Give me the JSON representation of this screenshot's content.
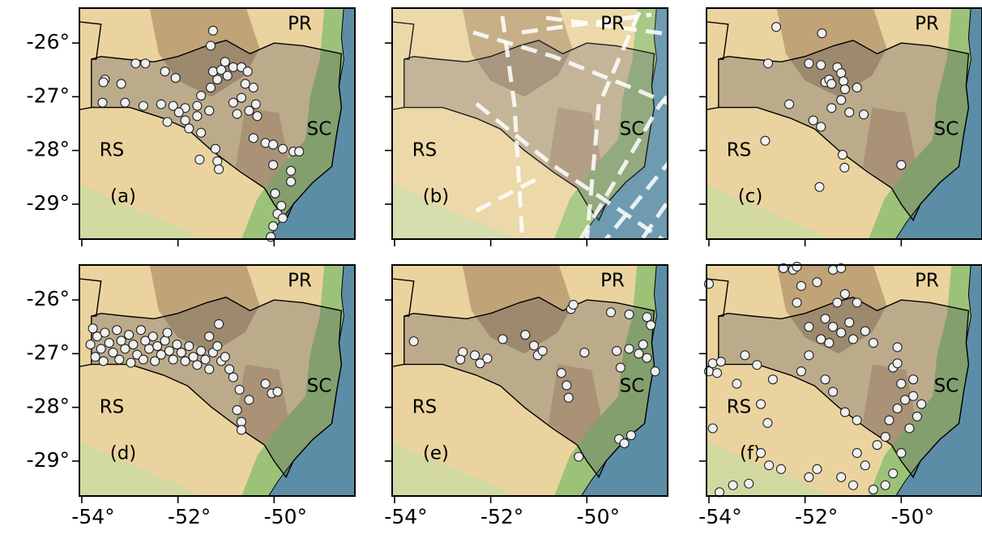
{
  "axes": {
    "xlim": [
      -54.05,
      -48.32
    ],
    "ylim": [
      -29.65,
      -25.35
    ],
    "xticks": [
      {
        "value": -54,
        "label": "-54°"
      },
      {
        "value": -52,
        "label": "-52°"
      },
      {
        "value": -50,
        "label": "-50°"
      }
    ],
    "yticks": [
      {
        "value": -26,
        "label": "-26°"
      },
      {
        "value": -27,
        "label": "-27°"
      },
      {
        "value": -28,
        "label": "-28°"
      },
      {
        "value": -29,
        "label": "-29°"
      }
    ]
  },
  "panels": [
    {
      "label": "(a)",
      "states": [
        "PR",
        "SC",
        "RS"
      ],
      "points": [
        [
          -53.52,
          -26.68
        ],
        [
          -53.55,
          -26.73
        ],
        [
          -53.18,
          -26.76
        ],
        [
          -52.88,
          -26.38
        ],
        [
          -52.68,
          -26.38
        ],
        [
          -52.27,
          -26.53
        ],
        [
          -52.05,
          -26.65
        ],
        [
          -53.57,
          -27.11
        ],
        [
          -53.1,
          -27.11
        ],
        [
          -52.72,
          -27.17
        ],
        [
          -52.35,
          -27.14
        ],
        [
          -52.1,
          -27.17
        ],
        [
          -51.85,
          -27.21
        ],
        [
          -51.6,
          -27.17
        ],
        [
          -51.35,
          -27.26
        ],
        [
          -51.6,
          -27.36
        ],
        [
          -51.85,
          -27.44
        ],
        [
          -51.98,
          -27.29
        ],
        [
          -52.22,
          -27.47
        ],
        [
          -51.77,
          -27.59
        ],
        [
          -51.52,
          -26.98
        ],
        [
          -51.32,
          -26.83
        ],
        [
          -51.18,
          -26.68
        ],
        [
          -51.27,
          -26.53
        ],
        [
          -51.1,
          -26.5
        ],
        [
          -51.02,
          -26.35
        ],
        [
          -50.97,
          -26.61
        ],
        [
          -50.85,
          -26.45
        ],
        [
          -50.68,
          -26.45
        ],
        [
          -50.55,
          -26.53
        ],
        [
          -50.6,
          -26.76
        ],
        [
          -50.43,
          -26.83
        ],
        [
          -50.38,
          -27.14
        ],
        [
          -50.52,
          -27.26
        ],
        [
          -50.35,
          -27.36
        ],
        [
          -50.77,
          -27.32
        ],
        [
          -50.85,
          -27.11
        ],
        [
          -50.68,
          -27.02
        ],
        [
          -51.27,
          -25.77
        ],
        [
          -51.32,
          -26.05
        ],
        [
          -51.52,
          -27.67
        ],
        [
          -51.22,
          -27.97
        ],
        [
          -51.18,
          -28.2
        ],
        [
          -51.15,
          -28.35
        ],
        [
          -51.55,
          -28.17
        ],
        [
          -50.43,
          -27.77
        ],
        [
          -50.18,
          -27.86
        ],
        [
          -50.02,
          -27.89
        ],
        [
          -49.82,
          -27.97
        ],
        [
          -49.6,
          -28.02
        ],
        [
          -49.48,
          -28.02
        ],
        [
          -50.02,
          -28.27
        ],
        [
          -49.65,
          -28.38
        ],
        [
          -49.65,
          -28.58
        ],
        [
          -49.98,
          -28.8
        ],
        [
          -49.85,
          -29.03
        ],
        [
          -49.93,
          -29.18
        ],
        [
          -49.82,
          -29.26
        ],
        [
          -50.02,
          -29.41
        ],
        [
          -50.07,
          -29.61
        ]
      ]
    },
    {
      "label": "(b)",
      "states": [
        "PR",
        "SC",
        "RS"
      ],
      "points": []
    },
    {
      "label": "(c)",
      "states": [
        "PR",
        "SC",
        "RS"
      ],
      "points": [
        [
          -52.6,
          -25.7
        ],
        [
          -51.65,
          -25.82
        ],
        [
          -52.77,
          -26.38
        ],
        [
          -51.92,
          -26.38
        ],
        [
          -51.67,
          -26.41
        ],
        [
          -51.33,
          -26.45
        ],
        [
          -51.25,
          -26.56
        ],
        [
          -51.2,
          -26.71
        ],
        [
          -51.58,
          -26.73
        ],
        [
          -51.5,
          -26.68
        ],
        [
          -51.45,
          -26.76
        ],
        [
          -50.92,
          -26.83
        ],
        [
          -51.17,
          -26.86
        ],
        [
          -51.45,
          -27.21
        ],
        [
          -51.25,
          -27.06
        ],
        [
          -52.33,
          -27.14
        ],
        [
          -51.83,
          -27.44
        ],
        [
          -51.67,
          -27.56
        ],
        [
          -51.08,
          -27.29
        ],
        [
          -50.78,
          -27.33
        ],
        [
          -52.83,
          -27.82
        ],
        [
          -51.22,
          -28.08
        ],
        [
          -51.18,
          -28.32
        ],
        [
          -50.0,
          -28.27
        ],
        [
          -51.7,
          -28.68
        ]
      ]
    },
    {
      "label": "(d)",
      "states": [
        "PR",
        "SC",
        "RS"
      ],
      "points": [
        [
          -53.77,
          -26.53
        ],
        [
          -53.68,
          -26.68
        ],
        [
          -53.82,
          -26.83
        ],
        [
          -53.6,
          -26.91
        ],
        [
          -53.72,
          -27.06
        ],
        [
          -53.52,
          -26.61
        ],
        [
          -53.43,
          -26.8
        ],
        [
          -53.35,
          -26.98
        ],
        [
          -53.55,
          -27.14
        ],
        [
          -53.27,
          -26.56
        ],
        [
          -53.18,
          -26.76
        ],
        [
          -53.1,
          -26.91
        ],
        [
          -53.22,
          -27.11
        ],
        [
          -53.02,
          -26.65
        ],
        [
          -52.93,
          -26.83
        ],
        [
          -52.85,
          -27.02
        ],
        [
          -52.98,
          -27.17
        ],
        [
          -52.77,
          -26.56
        ],
        [
          -52.68,
          -26.76
        ],
        [
          -52.6,
          -26.91
        ],
        [
          -52.72,
          -27.11
        ],
        [
          -52.52,
          -26.68
        ],
        [
          -52.43,
          -26.86
        ],
        [
          -52.35,
          -27.02
        ],
        [
          -52.48,
          -27.14
        ],
        [
          -52.27,
          -26.76
        ],
        [
          -52.18,
          -26.95
        ],
        [
          -52.1,
          -27.11
        ],
        [
          -52.22,
          -26.61
        ],
        [
          -52.02,
          -26.83
        ],
        [
          -51.93,
          -26.98
        ],
        [
          -51.85,
          -27.14
        ],
        [
          -51.77,
          -26.86
        ],
        [
          -51.68,
          -27.06
        ],
        [
          -51.6,
          -27.21
        ],
        [
          -51.52,
          -26.95
        ],
        [
          -51.43,
          -27.11
        ],
        [
          -51.35,
          -27.29
        ],
        [
          -51.27,
          -26.98
        ],
        [
          -51.18,
          -26.86
        ],
        [
          -51.1,
          -27.14
        ],
        [
          -51.02,
          -27.06
        ],
        [
          -51.35,
          -26.68
        ],
        [
          -51.15,
          -26.45
        ],
        [
          -50.93,
          -27.29
        ],
        [
          -50.85,
          -27.44
        ],
        [
          -50.72,
          -27.67
        ],
        [
          -50.52,
          -27.86
        ],
        [
          -50.77,
          -28.05
        ],
        [
          -50.68,
          -28.27
        ],
        [
          -50.68,
          -28.42
        ],
        [
          -50.18,
          -27.56
        ],
        [
          -50.05,
          -27.74
        ],
        [
          -49.93,
          -27.71
        ]
      ]
    },
    {
      "label": "(e)",
      "states": [
        "PR",
        "SC",
        "RS"
      ],
      "points": [
        [
          -53.6,
          -26.77
        ],
        [
          -52.58,
          -26.97
        ],
        [
          -52.63,
          -27.11
        ],
        [
          -52.22,
          -27.18
        ],
        [
          -52.07,
          -27.09
        ],
        [
          -51.75,
          -26.73
        ],
        [
          -51.28,
          -26.65
        ],
        [
          -51.1,
          -26.85
        ],
        [
          -51.02,
          -27.03
        ],
        [
          -50.92,
          -26.95
        ],
        [
          -50.53,
          -27.36
        ],
        [
          -50.05,
          -26.98
        ],
        [
          -50.42,
          -27.59
        ],
        [
          -50.38,
          -27.82
        ],
        [
          -50.33,
          -26.17
        ],
        [
          -50.28,
          -26.09
        ],
        [
          -49.5,
          -26.23
        ],
        [
          -49.12,
          -26.27
        ],
        [
          -48.75,
          -26.32
        ],
        [
          -48.67,
          -26.47
        ],
        [
          -49.38,
          -26.95
        ],
        [
          -49.12,
          -26.91
        ],
        [
          -48.92,
          -27.0
        ],
        [
          -48.83,
          -26.83
        ],
        [
          -48.75,
          -27.08
        ],
        [
          -49.3,
          -27.26
        ],
        [
          -48.58,
          -27.33
        ],
        [
          -49.33,
          -28.59
        ],
        [
          -49.22,
          -28.67
        ],
        [
          -49.08,
          -28.52
        ],
        [
          -50.17,
          -28.92
        ],
        [
          -52.33,
          -27.03
        ]
      ]
    },
    {
      "label": "(f)",
      "states": [
        "PR",
        "SC",
        "RS"
      ],
      "points": [
        [
          -54.0,
          -25.7
        ],
        [
          -52.45,
          -25.41
        ],
        [
          -52.25,
          -25.44
        ],
        [
          -52.08,
          -25.74
        ],
        [
          -52.17,
          -25.38
        ],
        [
          -51.75,
          -25.67
        ],
        [
          -51.42,
          -25.44
        ],
        [
          -51.25,
          -25.41
        ],
        [
          -51.17,
          -25.89
        ],
        [
          -50.92,
          -26.05
        ],
        [
          -51.33,
          -26.05
        ],
        [
          -51.58,
          -26.35
        ],
        [
          -51.42,
          -26.5
        ],
        [
          -51.25,
          -26.61
        ],
        [
          -51.08,
          -26.42
        ],
        [
          -51.0,
          -26.73
        ],
        [
          -51.67,
          -26.73
        ],
        [
          -51.5,
          -26.8
        ],
        [
          -51.92,
          -26.5
        ],
        [
          -52.17,
          -26.05
        ],
        [
          -50.75,
          -26.58
        ],
        [
          -50.58,
          -26.8
        ],
        [
          -50.08,
          -26.88
        ],
        [
          -50.17,
          -27.26
        ],
        [
          -53.92,
          -27.18
        ],
        [
          -53.75,
          -27.15
        ],
        [
          -54.0,
          -27.33
        ],
        [
          -53.83,
          -27.36
        ],
        [
          -53.92,
          -28.39
        ],
        [
          -53.78,
          -29.58
        ],
        [
          -53.42,
          -27.56
        ],
        [
          -52.92,
          -27.94
        ],
        [
          -52.78,
          -28.29
        ],
        [
          -52.92,
          -28.85
        ],
        [
          -52.75,
          -29.08
        ],
        [
          -52.5,
          -29.15
        ],
        [
          -51.92,
          -29.3
        ],
        [
          -51.75,
          -29.15
        ],
        [
          -51.25,
          -29.3
        ],
        [
          -51.0,
          -29.45
        ],
        [
          -50.92,
          -28.85
        ],
        [
          -50.75,
          -29.08
        ],
        [
          -50.5,
          -28.7
        ],
        [
          -50.33,
          -28.55
        ],
        [
          -50.25,
          -28.24
        ],
        [
          -50.08,
          -28.02
        ],
        [
          -49.92,
          -27.86
        ],
        [
          -49.75,
          -27.79
        ],
        [
          -49.58,
          -27.94
        ],
        [
          -49.67,
          -28.17
        ],
        [
          -49.83,
          -28.39
        ],
        [
          -50.0,
          -28.85
        ],
        [
          -50.17,
          -29.23
        ],
        [
          -50.33,
          -29.45
        ],
        [
          -50.58,
          -29.53
        ],
        [
          -51.58,
          -27.48
        ],
        [
          -51.42,
          -27.71
        ],
        [
          -51.17,
          -28.09
        ],
        [
          -50.92,
          -28.24
        ],
        [
          -51.92,
          -27.03
        ],
        [
          -52.08,
          -27.33
        ],
        [
          -50.0,
          -27.56
        ],
        [
          -49.75,
          -27.48
        ],
        [
          -50.08,
          -27.18
        ],
        [
          -53.25,
          -27.03
        ],
        [
          -53.0,
          -27.21
        ],
        [
          -52.67,
          -27.48
        ],
        [
          -53.5,
          -29.45
        ],
        [
          -53.17,
          -29.42
        ]
      ]
    }
  ]
}
